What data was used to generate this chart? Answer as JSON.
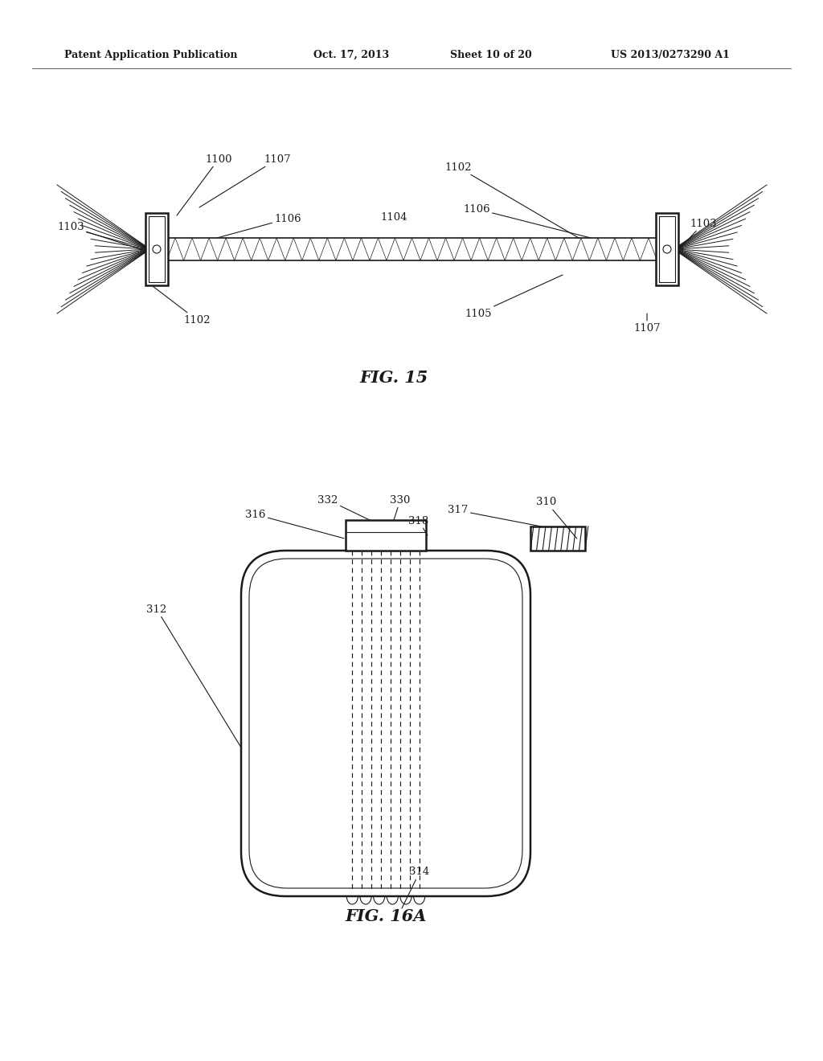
{
  "bg_color": "#ffffff",
  "header_text": "Patent Application Publication",
  "header_date": "Oct. 17, 2013",
  "header_sheet": "Sheet 10 of 20",
  "header_patent": "US 2013/0273290 A1",
  "fig15_caption": "FIG. 15",
  "fig16a_caption": "FIG. 16A"
}
